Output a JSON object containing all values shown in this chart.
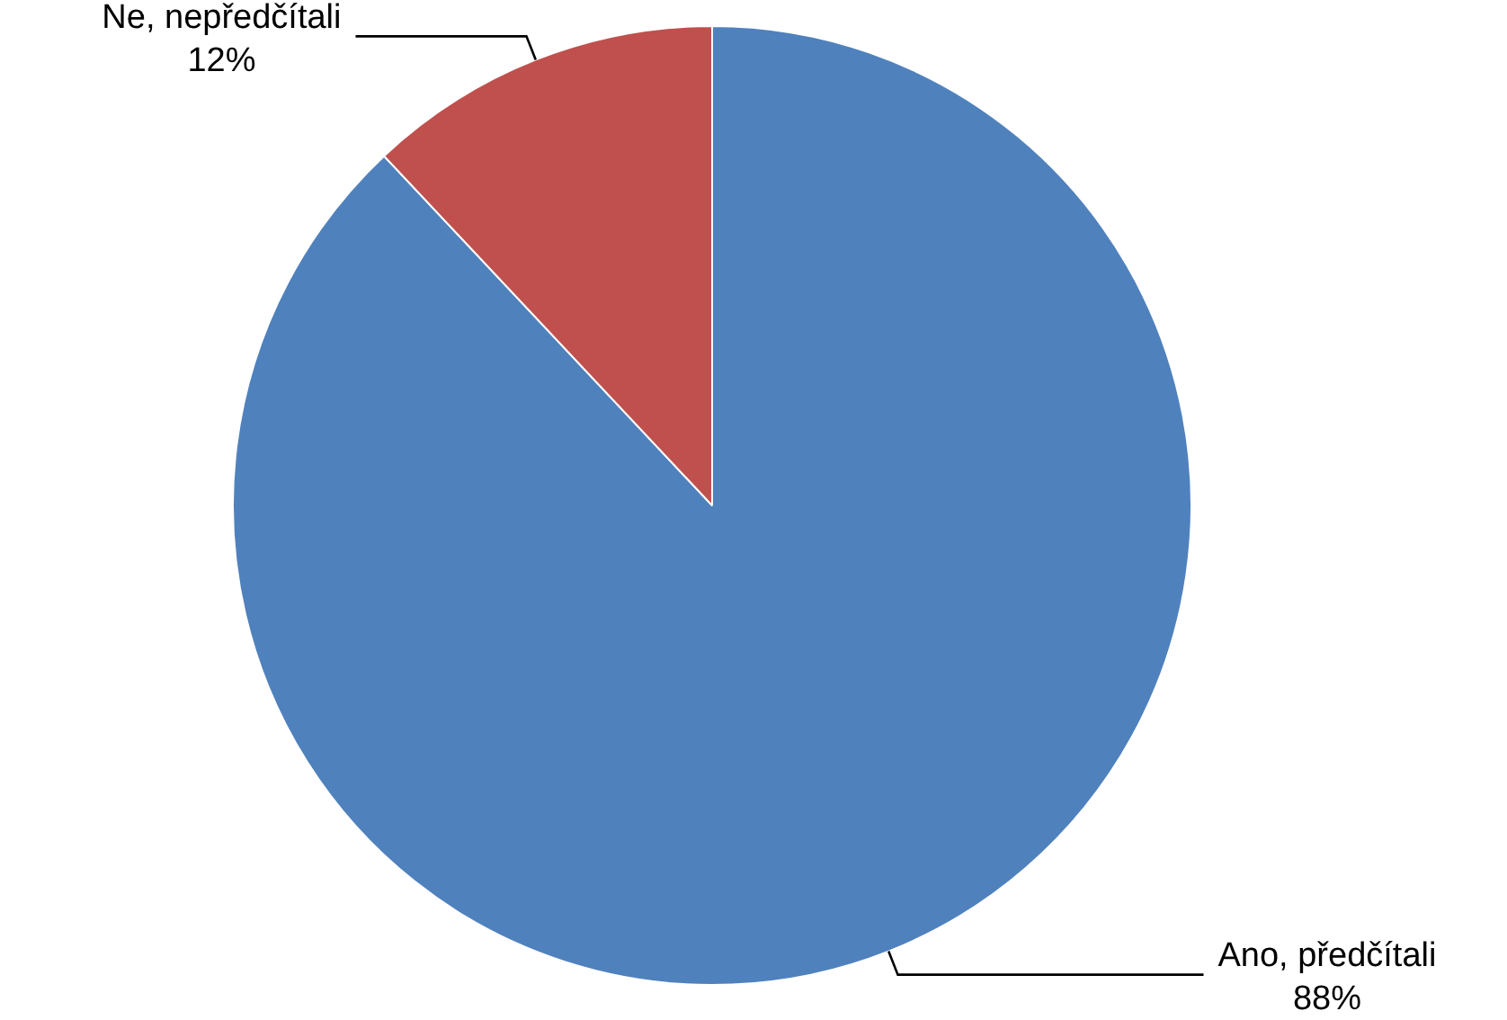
{
  "chart_data": {
    "type": "pie",
    "categories": [
      "Ano, předčítali",
      "Ne, nepředčítali"
    ],
    "values": [
      88,
      12
    ],
    "colors": [
      "#4f81bd",
      "#c0504d"
    ],
    "value_labels": [
      "88%",
      "12%"
    ],
    "legend": false
  }
}
